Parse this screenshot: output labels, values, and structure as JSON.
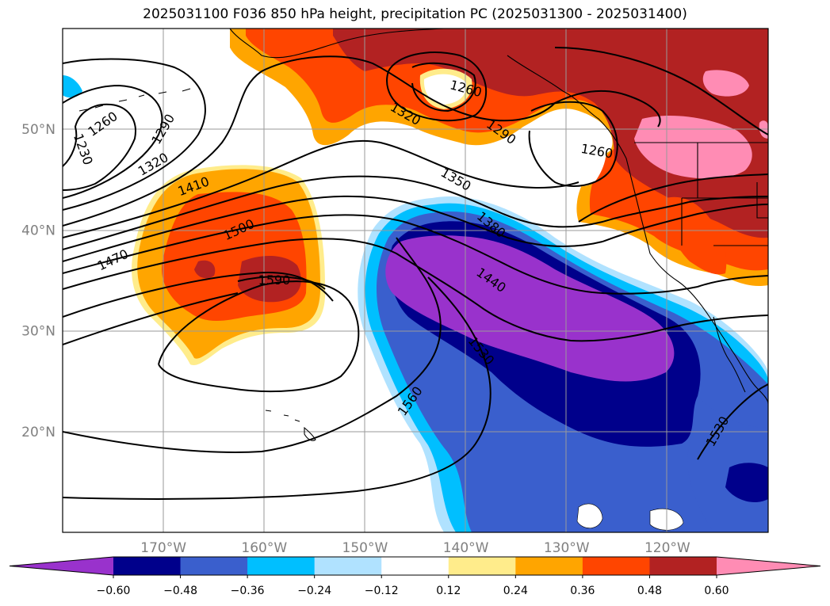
{
  "title": "2025031100 F036 850 hPa height, precipitation PC (2025031300 - 2025031400)",
  "map": {
    "projection": "PlateCarree",
    "lon_range": [
      -180,
      -110
    ],
    "lat_range": [
      10,
      60
    ],
    "lon_ticks": [
      {
        "value": -170,
        "label": "170°W"
      },
      {
        "value": -160,
        "label": "160°W"
      },
      {
        "value": -150,
        "label": "150°W"
      },
      {
        "value": -140,
        "label": "140°W"
      },
      {
        "value": -130,
        "label": "130°W"
      },
      {
        "value": -120,
        "label": "120°W"
      }
    ],
    "lat_ticks": [
      {
        "value": 20,
        "label": "20°N"
      },
      {
        "value": 30,
        "label": "30°N"
      },
      {
        "value": 40,
        "label": "40°N"
      },
      {
        "value": 50,
        "label": "50°N"
      }
    ],
    "gridlines": true,
    "contour_labels": [
      {
        "text": "1230",
        "lon": -178,
        "lat": 48,
        "rot": 70
      },
      {
        "text": "1260",
        "lon": -176,
        "lat": 50.5,
        "rot": -35
      },
      {
        "text": "1290",
        "lon": -170,
        "lat": 50,
        "rot": -60
      },
      {
        "text": "1320",
        "lon": -171,
        "lat": 46.5,
        "rot": -30
      },
      {
        "text": "1410",
        "lon": -167,
        "lat": 44.3,
        "rot": -20
      },
      {
        "text": "1500",
        "lon": -162.5,
        "lat": 40,
        "rot": -25
      },
      {
        "text": "1470",
        "lon": -175,
        "lat": 37,
        "rot": -25
      },
      {
        "text": "1590",
        "lon": -159,
        "lat": 35,
        "rot": 0
      },
      {
        "text": "1260",
        "lon": -140,
        "lat": 54,
        "rot": 15
      },
      {
        "text": "1320",
        "lon": -146,
        "lat": 51.5,
        "rot": 30
      },
      {
        "text": "1290",
        "lon": -136.5,
        "lat": 49.7,
        "rot": 35
      },
      {
        "text": "1260",
        "lon": -127,
        "lat": 47.8,
        "rot": 10
      },
      {
        "text": "1350",
        "lon": -141,
        "lat": 45,
        "rot": 30
      },
      {
        "text": "1380",
        "lon": -137.5,
        "lat": 40.5,
        "rot": 40
      },
      {
        "text": "1440",
        "lon": -137.5,
        "lat": 35,
        "rot": 35
      },
      {
        "text": "1530",
        "lon": -138.5,
        "lat": 28,
        "rot": 50
      },
      {
        "text": "1560",
        "lon": -145.5,
        "lat": 23,
        "rot": -55
      },
      {
        "text": "1530",
        "lon": -115,
        "lat": 20,
        "rot": -60
      }
    ]
  },
  "colorbar": {
    "ticks": [
      "−0.60",
      "−0.48",
      "−0.36",
      "−0.24",
      "−0.12",
      "0.12",
      "0.24",
      "0.36",
      "0.48",
      "0.60"
    ],
    "colors": [
      "#9932cc",
      "#00008b",
      "#3a5fcd",
      "#00bfff",
      "#b0e2ff",
      "#ffffff",
      "#ffec8b",
      "#ffa500",
      "#ff4500",
      "#b22222",
      "#ff8cb4"
    ]
  }
}
